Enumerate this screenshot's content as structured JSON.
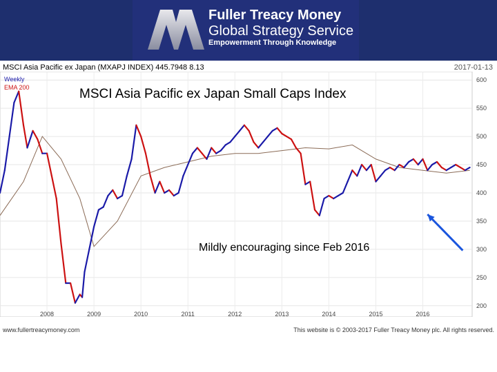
{
  "banner": {
    "name": "Fuller Treacy Money",
    "subtitle": "Global Strategy Service",
    "tagline": "Empowerment Through Knowledge",
    "background": "#22307a"
  },
  "header": {
    "title_line": "MSCI Asia Pacific ex Japan (MXAPJ INDEX) 445.7948 8.13",
    "date": "2017-01-13"
  },
  "chart_data": {
    "type": "line",
    "title": "MSCI Asia Pacific ex Japan Small Caps Index",
    "annotation": "Mildly encouraging since Feb 2016",
    "legend": [
      "Weekly",
      "EMA 200"
    ],
    "legend_colors": [
      "#1a1aa8",
      "#cc1111"
    ],
    "x_ticks": [
      "2008",
      "2009",
      "2010",
      "2011",
      "2012",
      "2013",
      "2014",
      "2015",
      "2016"
    ],
    "y_ticks": [
      200,
      250,
      300,
      350,
      400,
      450,
      500,
      550,
      600
    ],
    "ylim": [
      190,
      610
    ],
    "xlim": [
      2007.0,
      2017.05
    ],
    "grid": true,
    "colors": {
      "up": "#1a1aa8",
      "down": "#cc1111",
      "ema": "#8a6a55",
      "arrow": "#1a55dd"
    },
    "series": [
      {
        "name": "Weekly",
        "x": [
          2007.0,
          2007.1,
          2007.2,
          2007.3,
          2007.4,
          2007.5,
          2007.58,
          2007.7,
          2007.8,
          2007.9,
          2008.0,
          2008.1,
          2008.2,
          2008.3,
          2008.4,
          2008.5,
          2008.6,
          2008.7,
          2008.75,
          2008.8,
          2008.9,
          2009.0,
          2009.1,
          2009.2,
          2009.3,
          2009.4,
          2009.5,
          2009.6,
          2009.7,
          2009.8,
          2009.9,
          2010.0,
          2010.1,
          2010.2,
          2010.3,
          2010.4,
          2010.5,
          2010.6,
          2010.7,
          2010.8,
          2010.9,
          2011.0,
          2011.1,
          2011.2,
          2011.3,
          2011.4,
          2011.5,
          2011.6,
          2011.7,
          2011.8,
          2011.9,
          2012.0,
          2012.1,
          2012.2,
          2012.3,
          2012.4,
          2012.5,
          2012.6,
          2012.7,
          2012.8,
          2012.9,
          2013.0,
          2013.1,
          2013.2,
          2013.3,
          2013.4,
          2013.5,
          2013.6,
          2013.7,
          2013.8,
          2013.9,
          2014.0,
          2014.1,
          2014.2,
          2014.3,
          2014.4,
          2014.5,
          2014.6,
          2014.7,
          2014.8,
          2014.9,
          2015.0,
          2015.1,
          2015.2,
          2015.3,
          2015.4,
          2015.5,
          2015.6,
          2015.7,
          2015.8,
          2015.9,
          2016.0,
          2016.1,
          2016.2,
          2016.3,
          2016.4,
          2016.5,
          2016.6,
          2016.7,
          2016.8,
          2016.9,
          2017.0
        ],
        "values": [
          400,
          440,
          500,
          560,
          580,
          520,
          480,
          510,
          495,
          470,
          470,
          430,
          390,
          310,
          240,
          240,
          205,
          220,
          215,
          260,
          300,
          340,
          370,
          375,
          395,
          405,
          390,
          395,
          430,
          460,
          520,
          500,
          470,
          430,
          400,
          420,
          400,
          405,
          395,
          400,
          430,
          450,
          470,
          480,
          470,
          460,
          480,
          470,
          475,
          485,
          490,
          500,
          510,
          520,
          510,
          490,
          480,
          490,
          500,
          510,
          515,
          505,
          500,
          495,
          480,
          470,
          415,
          420,
          370,
          360,
          390,
          395,
          390,
          395,
          400,
          420,
          440,
          430,
          450,
          440,
          450,
          420,
          430,
          440,
          445,
          440,
          450,
          445,
          455,
          460,
          450,
          460,
          440,
          450,
          455,
          445,
          440,
          445,
          450,
          445,
          440,
          445
        ]
      },
      {
        "name": "EMA 200",
        "x": [
          2007.0,
          2007.5,
          2007.9,
          2008.3,
          2008.7,
          2009.0,
          2009.5,
          2010.0,
          2010.5,
          2011.0,
          2011.5,
          2012.0,
          2012.5,
          2013.0,
          2013.5,
          2014.0,
          2014.5,
          2015.0,
          2015.5,
          2016.0,
          2016.5,
          2017.0
        ],
        "values": [
          360,
          420,
          500,
          460,
          390,
          305,
          350,
          430,
          445,
          455,
          465,
          470,
          470,
          475,
          480,
          478,
          485,
          460,
          445,
          440,
          435,
          440
        ]
      }
    ],
    "arrow": {
      "from": {
        "x": 2016.85,
        "y": 298
      },
      "to": {
        "x": 2016.1,
        "y": 362
      }
    }
  },
  "footer": {
    "website": "www.fullertreacymoney.com",
    "copyright": "This website is © 2003-2017 Fuller Treacy Money plc. All rights reserved."
  }
}
